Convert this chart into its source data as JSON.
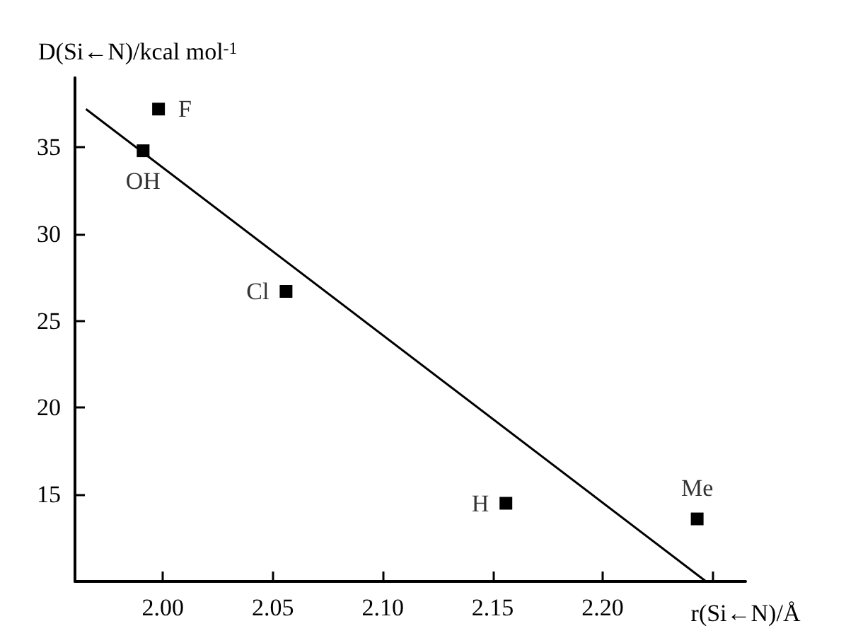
{
  "chart_data": {
    "type": "scatter",
    "xlabel": "r(Si←N)/Å",
    "ylabel": "D(Si←N)/kcal mol$^{-1}$",
    "xlim": [
      1.96,
      2.265
    ],
    "xticks": [
      {
        "value": 2.0,
        "label": "2.00"
      },
      2.05,
      {
        "value": 2.1,
        "label": "2.10"
      },
      2.15,
      {
        "value": 2.2,
        "label": "2.20"
      },
      {
        "value": 2.25,
        "label": null
      }
    ],
    "ylim": [
      10,
      39
    ],
    "yticks": [
      15,
      20,
      25,
      30,
      35
    ],
    "grid": false,
    "marker": "square",
    "series": [
      {
        "color": "#000000",
        "x": [
          1.998,
          1.991,
          2.056,
          2.156,
          2.243
        ],
        "values": [
          37.2,
          34.8,
          26.7,
          14.5,
          13.6
        ]
      },
      {
        "type": "line",
        "color": "#000000",
        "marker": "none",
        "line_style": "solid",
        "x": [
          1.965,
          2.247
        ],
        "values": [
          37.2,
          10
        ]
      }
    ],
    "annotations": [
      {
        "text": "F",
        "x": 1.998,
        "y": 37.2
      },
      {
        "text": "OH",
        "x": 1.991,
        "y": 34.85
      },
      {
        "text": "Cl",
        "x": 2.056,
        "y": 26.7
      },
      {
        "text": "H",
        "x": 2.156,
        "y": 14.5
      },
      {
        "text": "Me",
        "x": 2.243,
        "y": 13.6
      }
    ]
  }
}
